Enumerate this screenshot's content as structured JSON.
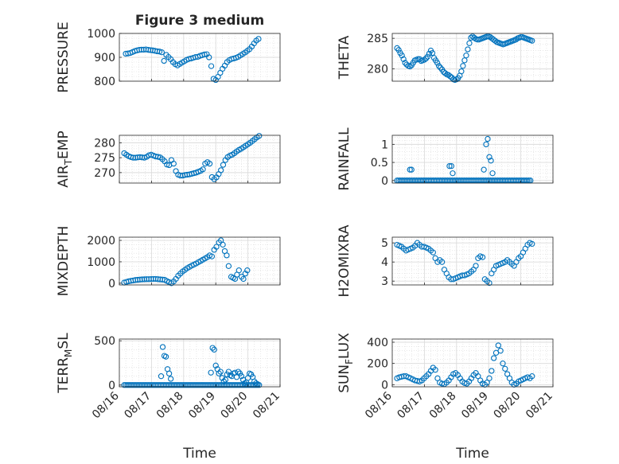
{
  "figure_title": "Figure 3 medium",
  "x_ticks": [
    "08/16",
    "08/17",
    "08/18",
    "08/19",
    "08/20",
    "08/21"
  ],
  "xlabel": "Time",
  "marker_color": "#0072BD",
  "chart_data": [
    {
      "type": "scatter",
      "ylabel": "PRESSURE",
      "ylim": [
        800,
        1000
      ],
      "yticks": [
        800,
        900,
        1000
      ],
      "grid": true,
      "x": [
        0.2,
        0.27,
        0.34,
        0.41,
        0.48,
        0.55,
        0.62,
        0.69,
        0.76,
        0.83,
        0.9,
        0.97,
        1.04,
        1.11,
        1.18,
        1.25,
        1.32,
        1.39,
        1.46,
        1.53,
        1.6,
        1.67,
        1.74,
        1.81,
        1.88,
        1.95,
        2.02,
        2.09,
        2.16,
        2.23,
        2.3,
        2.37,
        2.44,
        2.51,
        2.58,
        2.65,
        2.72,
        2.79,
        2.86,
        2.93,
        3.0,
        3.07,
        3.14,
        3.21,
        3.28,
        3.35,
        3.42,
        3.49,
        3.56,
        3.63,
        3.7,
        3.77,
        3.84,
        3.91,
        3.98,
        4.05,
        4.12,
        4.19,
        4.26,
        4.33
      ],
      "y": [
        915,
        916,
        918,
        922,
        926,
        929,
        931,
        932,
        932,
        933,
        931,
        930,
        929,
        927,
        925,
        924,
        921,
        885,
        910,
        901,
        892,
        880,
        871,
        866,
        872,
        878,
        883,
        889,
        893,
        895,
        898,
        901,
        902,
        906,
        909,
        912,
        913,
        900,
        863,
        810,
        805,
        818,
        835,
        852,
        865,
        880,
        888,
        893,
        895,
        898,
        902,
        908,
        914,
        920,
        927,
        934,
        945,
        958,
        970,
        977
      ]
    },
    {
      "type": "scatter",
      "ylabel": "THETA",
      "ylim": [
        278,
        285.8
      ],
      "yticks": [
        280,
        285
      ],
      "grid": true,
      "x": [
        0.15,
        0.2,
        0.25,
        0.3,
        0.35,
        0.4,
        0.45,
        0.5,
        0.55,
        0.6,
        0.65,
        0.7,
        0.75,
        0.8,
        0.85,
        0.9,
        0.95,
        1.0,
        1.05,
        1.1,
        1.15,
        1.2,
        1.25,
        1.3,
        1.35,
        1.4,
        1.45,
        1.5,
        1.55,
        1.6,
        1.65,
        1.7,
        1.75,
        1.8,
        1.85,
        1.9,
        1.95,
        2.0,
        2.05,
        2.1,
        2.15,
        2.2,
        2.25,
        2.3,
        2.35,
        2.4,
        2.45,
        2.5,
        2.55,
        2.6,
        2.65,
        2.7,
        2.75,
        2.8,
        2.85,
        2.9,
        2.95,
        3.0,
        3.05,
        3.1,
        3.15,
        3.2,
        3.25,
        3.3,
        3.35,
        3.4,
        3.45,
        3.5,
        3.55,
        3.6,
        3.65,
        3.7,
        3.75,
        3.8,
        3.85,
        3.9,
        3.95,
        4.0,
        4.05,
        4.1,
        4.15,
        4.2,
        4.25,
        4.3,
        4.35
      ],
      "y": [
        283.4,
        283.1,
        282.6,
        282.2,
        281.6,
        281,
        280.7,
        280.5,
        280.4,
        280.6,
        281,
        281.4,
        281.5,
        281.6,
        281.6,
        281.3,
        281.4,
        281.5,
        281.7,
        282,
        282.5,
        283,
        282.6,
        281.8,
        281.4,
        281,
        280.5,
        280.2,
        279.9,
        279.5,
        279.3,
        279.1,
        279,
        278.8,
        278.6,
        278.3,
        278.2,
        278.3,
        278.5,
        278.9,
        279.6,
        280.5,
        281.4,
        282.2,
        283.2,
        284.2,
        285.1,
        285.3,
        285.1,
        284.9,
        284.8,
        284.8,
        284.9,
        285,
        285.1,
        285.2,
        285.3,
        285.3,
        285.2,
        285,
        284.8,
        284.6,
        284.4,
        284.3,
        284.2,
        284.1,
        284,
        284.1,
        284.2,
        284.3,
        284.4,
        284.5,
        284.6,
        284.7,
        284.8,
        285,
        285.1,
        285.2,
        285.2,
        285.1,
        285,
        284.9,
        284.8,
        284.7,
        284.6
      ]
    },
    {
      "type": "scatter",
      "ylabel": "AIR_TEMP",
      "ylim": [
        266.5,
        282.5
      ],
      "yticks": [
        270,
        275,
        280
      ],
      "grid": true,
      "x": [
        0.15,
        0.22,
        0.29,
        0.36,
        0.43,
        0.5,
        0.57,
        0.64,
        0.71,
        0.78,
        0.85,
        0.92,
        0.99,
        1.06,
        1.13,
        1.2,
        1.27,
        1.34,
        1.41,
        1.48,
        1.55,
        1.62,
        1.69,
        1.76,
        1.83,
        1.9,
        1.97,
        2.04,
        2.11,
        2.18,
        2.25,
        2.32,
        2.39,
        2.46,
        2.53,
        2.6,
        2.67,
        2.74,
        2.81,
        2.88,
        2.95,
        3.02,
        3.09,
        3.16,
        3.23,
        3.3,
        3.37,
        3.44,
        3.51,
        3.58,
        3.65,
        3.72,
        3.79,
        3.86,
        3.93,
        4.0,
        4.07,
        4.14,
        4.21,
        4.28,
        4.35
      ],
      "y": [
        276.5,
        276,
        275.5,
        275.2,
        275,
        275,
        275.1,
        275.2,
        275.1,
        275,
        275.3,
        275.8,
        276,
        275.7,
        275.4,
        275.3,
        275.1,
        274.5,
        273.8,
        272.7,
        272.5,
        274.2,
        273,
        270.5,
        269.3,
        269,
        269,
        269.2,
        269.3,
        269.4,
        269.6,
        269.8,
        270,
        270.3,
        270.6,
        271.1,
        273,
        273.5,
        273,
        268.5,
        267.8,
        268.4,
        269.5,
        270.8,
        272.6,
        274.2,
        275.2,
        275.7,
        276,
        276.5,
        277.1,
        277.6,
        278,
        278.5,
        279,
        279.5,
        280,
        280.6,
        281.2,
        281.8,
        282.3
      ]
    },
    {
      "type": "scatter",
      "ylabel": "RAINFALL",
      "ylim": [
        -0.07,
        1.25
      ],
      "yticks": [
        0,
        0.5,
        1
      ],
      "grid": true,
      "x": [
        0.15,
        0.2,
        0.25,
        0.3,
        0.35,
        0.4,
        0.45,
        0.5,
        0.55,
        0.6,
        0.65,
        0.7,
        0.75,
        0.8,
        0.85,
        0.9,
        0.95,
        1.0,
        1.05,
        1.1,
        1.15,
        1.2,
        1.25,
        1.3,
        1.35,
        1.4,
        1.45,
        1.5,
        1.55,
        1.6,
        1.65,
        1.7,
        1.75,
        1.8,
        1.85,
        1.9,
        1.95,
        2.0,
        2.05,
        2.1,
        2.15,
        2.2,
        2.25,
        2.3,
        2.35,
        2.4,
        2.45,
        2.5,
        2.55,
        2.6,
        2.65,
        2.7,
        2.75,
        2.8,
        2.85,
        2.9,
        2.95,
        3.0,
        3.05,
        3.1,
        3.15,
        3.2,
        3.25,
        3.3,
        3.35,
        3.4,
        3.45,
        3.5,
        3.55,
        3.6,
        3.65,
        3.7,
        3.75,
        3.8,
        3.85,
        3.9,
        3.95,
        4.0,
        4.05,
        4.1,
        4.15,
        4.2,
        4.25,
        4.3,
        0.55,
        0.6,
        1.78,
        1.84,
        1.88,
        2.85,
        2.92,
        2.97,
        3.02,
        3.07,
        3.12
      ],
      "y": [
        0,
        0,
        0,
        0,
        0,
        0,
        0,
        0,
        0,
        0,
        0,
        0,
        0,
        0,
        0,
        0,
        0,
        0,
        0,
        0,
        0,
        0,
        0,
        0,
        0,
        0,
        0,
        0,
        0,
        0,
        0,
        0,
        0,
        0,
        0,
        0,
        0,
        0,
        0,
        0,
        0,
        0,
        0,
        0,
        0,
        0,
        0,
        0,
        0,
        0,
        0,
        0,
        0,
        0,
        0,
        0,
        0,
        0,
        0,
        0,
        0,
        0,
        0,
        0,
        0,
        0,
        0,
        0,
        0,
        0,
        0,
        0,
        0,
        0,
        0,
        0,
        0,
        0,
        0,
        0,
        0,
        0,
        0,
        0,
        0.3,
        0.3,
        0.4,
        0.4,
        0.2,
        0.3,
        1.0,
        1.15,
        0.65,
        0.55,
        0.2
      ]
    },
    {
      "type": "scatter",
      "ylabel": "MIXDEPTH",
      "ylim": [
        -80,
        2150
      ],
      "yticks": [
        0,
        1000,
        2000
      ],
      "grid": true,
      "x": [
        0.15,
        0.22,
        0.29,
        0.36,
        0.43,
        0.5,
        0.57,
        0.64,
        0.71,
        0.78,
        0.85,
        0.92,
        0.99,
        1.06,
        1.13,
        1.2,
        1.27,
        1.34,
        1.41,
        1.48,
        1.55,
        1.62,
        1.69,
        1.76,
        1.83,
        1.9,
        1.97,
        2.04,
        2.11,
        2.18,
        2.25,
        2.32,
        2.39,
        2.46,
        2.53,
        2.6,
        2.67,
        2.74,
        2.81,
        2.88,
        2.95,
        3.02,
        3.1,
        3.16,
        3.22,
        3.28,
        3.34,
        3.4,
        3.48,
        3.54,
        3.6,
        3.66,
        3.72,
        3.8,
        3.86,
        3.92,
        3.98
      ],
      "y": [
        30,
        60,
        90,
        110,
        130,
        150,
        160,
        170,
        180,
        185,
        190,
        190,
        195,
        200,
        200,
        190,
        180,
        170,
        160,
        100,
        50,
        0,
        80,
        200,
        350,
        450,
        550,
        620,
        700,
        760,
        820,
        870,
        920,
        980,
        1040,
        1100,
        1160,
        1220,
        1300,
        1250,
        1560,
        1700,
        1900,
        2000,
        1800,
        1500,
        1300,
        800,
        300,
        250,
        200,
        400,
        600,
        300,
        200,
        450,
        600
      ]
    },
    {
      "type": "scatter",
      "ylabel": "H2OMIXRA",
      "ylim": [
        2.8,
        5.3
      ],
      "yticks": [
        3,
        4,
        5
      ],
      "grid": true,
      "x": [
        0.15,
        0.22,
        0.29,
        0.36,
        0.43,
        0.5,
        0.57,
        0.64,
        0.71,
        0.78,
        0.85,
        0.92,
        0.99,
        1.06,
        1.13,
        1.2,
        1.27,
        1.34,
        1.41,
        1.48,
        1.55,
        1.62,
        1.69,
        1.76,
        1.83,
        1.9,
        1.97,
        2.04,
        2.11,
        2.18,
        2.25,
        2.32,
        2.39,
        2.46,
        2.53,
        2.6,
        2.67,
        2.74,
        2.81,
        2.88,
        2.95,
        3.02,
        3.09,
        3.16,
        3.23,
        3.3,
        3.37,
        3.44,
        3.51,
        3.58,
        3.65,
        3.72,
        3.79,
        3.86,
        3.93,
        4.0,
        4.07,
        4.14,
        4.21,
        4.28,
        4.35
      ],
      "y": [
        4.9,
        4.85,
        4.8,
        4.7,
        4.6,
        4.65,
        4.7,
        4.75,
        4.85,
        5.0,
        4.9,
        4.8,
        4.8,
        4.75,
        4.7,
        4.6,
        4.5,
        4.2,
        4.0,
        4.1,
        4.0,
        3.6,
        3.4,
        3.2,
        3.1,
        3.1,
        3.15,
        3.2,
        3.25,
        3.3,
        3.3,
        3.35,
        3.4,
        3.5,
        3.6,
        3.8,
        4.2,
        4.3,
        4.25,
        3.1,
        3.0,
        2.9,
        3.4,
        3.6,
        3.8,
        3.85,
        3.9,
        3.95,
        4.0,
        4.1,
        4.0,
        3.9,
        3.8,
        4.0,
        4.2,
        4.3,
        4.5,
        4.7,
        4.9,
        5.0,
        4.95
      ]
    },
    {
      "type": "scatter",
      "ylabel": "TERR_MSL",
      "ylim": [
        -20,
        520
      ],
      "yticks": [
        0,
        500
      ],
      "grid": true,
      "x": [
        0.15,
        0.2,
        0.25,
        0.3,
        0.35,
        0.4,
        0.45,
        0.5,
        0.55,
        0.6,
        0.65,
        0.7,
        0.75,
        0.8,
        0.85,
        0.9,
        0.95,
        1.0,
        1.05,
        1.1,
        1.15,
        1.2,
        1.25,
        1.3,
        1.35,
        1.4,
        1.45,
        1.5,
        1.55,
        1.6,
        1.65,
        1.7,
        1.75,
        1.8,
        1.85,
        1.9,
        1.95,
        2.0,
        2.05,
        2.1,
        2.15,
        2.2,
        2.25,
        2.3,
        2.35,
        2.4,
        2.45,
        2.5,
        2.55,
        2.6,
        2.65,
        2.7,
        2.75,
        2.8,
        2.85,
        2.9,
        2.95,
        3.0,
        3.05,
        3.1,
        3.15,
        3.2,
        3.25,
        3.3,
        3.35,
        3.4,
        3.45,
        3.5,
        3.55,
        3.6,
        3.65,
        3.7,
        3.75,
        3.8,
        3.85,
        3.9,
        3.95,
        4.0,
        4.05,
        4.1,
        4.15,
        4.2,
        4.25,
        4.3,
        4.35
      ],
      "y": [
        0,
        0,
        0,
        0,
        0,
        0,
        0,
        0,
        0,
        0,
        0,
        0,
        0,
        0,
        0,
        0,
        0,
        0,
        0,
        0,
        0,
        0,
        0,
        0,
        0,
        0,
        0,
        0,
        0,
        0,
        0,
        0,
        0,
        0,
        0,
        0,
        0,
        0,
        0,
        0,
        0,
        0,
        0,
        0,
        0,
        0,
        0,
        0,
        0,
        0,
        0,
        0,
        0,
        0,
        0,
        0,
        0,
        0,
        0,
        0,
        0,
        0,
        0,
        0,
        0,
        0,
        0,
        0,
        0,
        0,
        0,
        0,
        0,
        0,
        0,
        0,
        0,
        0,
        0,
        0,
        0,
        0,
        0,
        0,
        0
      ],
      "x_extra": [
        1.3,
        1.35,
        1.4,
        1.45,
        1.5,
        1.55,
        1.6,
        2.85,
        2.9,
        2.95,
        3.0,
        3.05,
        3.1,
        3.15,
        3.2,
        3.25,
        3.3,
        3.35,
        3.4,
        3.45,
        3.5,
        3.55,
        3.6,
        3.65,
        3.7,
        3.75,
        3.8,
        3.85,
        3.9,
        3.95,
        4.0,
        4.05,
        4.1,
        4.15,
        4.2,
        4.25,
        4.3
      ],
      "y_extra": [
        100,
        430,
        330,
        320,
        180,
        130,
        70,
        140,
        420,
        400,
        220,
        180,
        130,
        150,
        80,
        40,
        60,
        120,
        150,
        110,
        100,
        130,
        140,
        90,
        150,
        130,
        100,
        60,
        20,
        30,
        80,
        130,
        120,
        90,
        40,
        20,
        10
      ]
    },
    {
      "type": "scatter",
      "ylabel": "SUN_FLUX",
      "ylim": [
        -20,
        430
      ],
      "yticks": [
        0,
        200,
        400
      ],
      "grid": true,
      "x": [
        0.15,
        0.22,
        0.29,
        0.36,
        0.43,
        0.5,
        0.57,
        0.64,
        0.71,
        0.78,
        0.85,
        0.92,
        0.99,
        1.06,
        1.13,
        1.2,
        1.27,
        1.34,
        1.41,
        1.48,
        1.55,
        1.62,
        1.69,
        1.76,
        1.83,
        1.9,
        1.97,
        2.04,
        2.11,
        2.18,
        2.25,
        2.32,
        2.39,
        2.46,
        2.53,
        2.6,
        2.67,
        2.74,
        2.81,
        2.88,
        2.95,
        3.02,
        3.09,
        3.16,
        3.23,
        3.3,
        3.37,
        3.44,
        3.51,
        3.58,
        3.65,
        3.72,
        3.79,
        3.86,
        3.93,
        4.0,
        4.07,
        4.14,
        4.21,
        4.28,
        4.35
      ],
      "y": [
        60,
        70,
        75,
        80,
        80,
        70,
        60,
        50,
        40,
        35,
        30,
        40,
        60,
        80,
        100,
        130,
        160,
        140,
        60,
        20,
        10,
        5,
        20,
        40,
        70,
        100,
        110,
        90,
        60,
        30,
        15,
        10,
        30,
        60,
        90,
        110,
        80,
        40,
        10,
        0,
        20,
        60,
        130,
        250,
        300,
        370,
        320,
        200,
        150,
        100,
        60,
        20,
        0,
        10,
        30,
        40,
        50,
        60,
        70,
        60,
        80
      ]
    }
  ]
}
